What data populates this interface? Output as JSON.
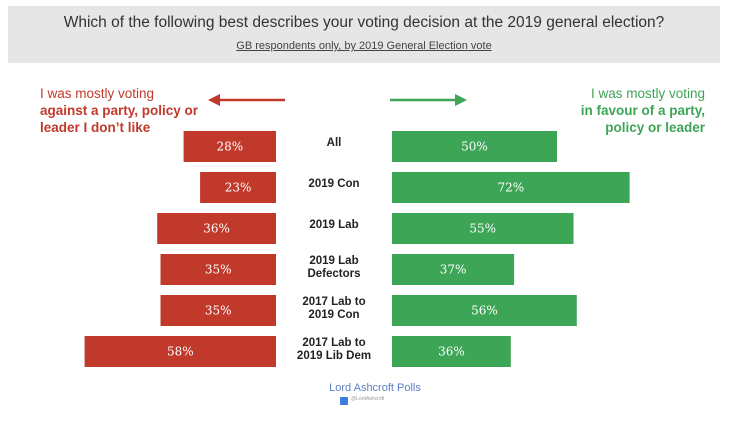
{
  "header": {
    "title": "Which of the following best describes your voting decision at the 2019 general election?",
    "subtitle": "GB respondents only, by 2019 General Election vote"
  },
  "left_label": {
    "line1": "I was mostly voting",
    "rest": "against a party, policy or leader I don’t like",
    "color": "#c0392b"
  },
  "right_label": {
    "line1": "I was mostly voting",
    "rest": "in favour of a party, policy or leader",
    "color": "#3da556"
  },
  "chart_data": {
    "type": "bar",
    "orientation": "horizontal-diverging",
    "categories": [
      [
        "All"
      ],
      [
        "2019 Con"
      ],
      [
        "2019 Lab"
      ],
      [
        "2019 Lab",
        "Defectors"
      ],
      [
        "2017 Lab to",
        "2019 Con"
      ],
      [
        "2017 Lab to",
        "2019 Lib Dem"
      ]
    ],
    "series": [
      {
        "color": "#c0392b",
        "values": [
          28,
          23,
          36,
          35,
          35,
          58
        ],
        "labels": [
          "28%",
          "23%",
          "36%",
          "35%",
          "35%",
          "58%"
        ]
      },
      {
        "color": "#3da556",
        "values": [
          50,
          72,
          55,
          37,
          56,
          36
        ],
        "labels": [
          "50%",
          "72%",
          "55%",
          "37%",
          "56%",
          "36%"
        ]
      }
    ]
  },
  "footer": {
    "source": "Lord Ashcroft Polls",
    "handle": "@LordAshcroft"
  }
}
